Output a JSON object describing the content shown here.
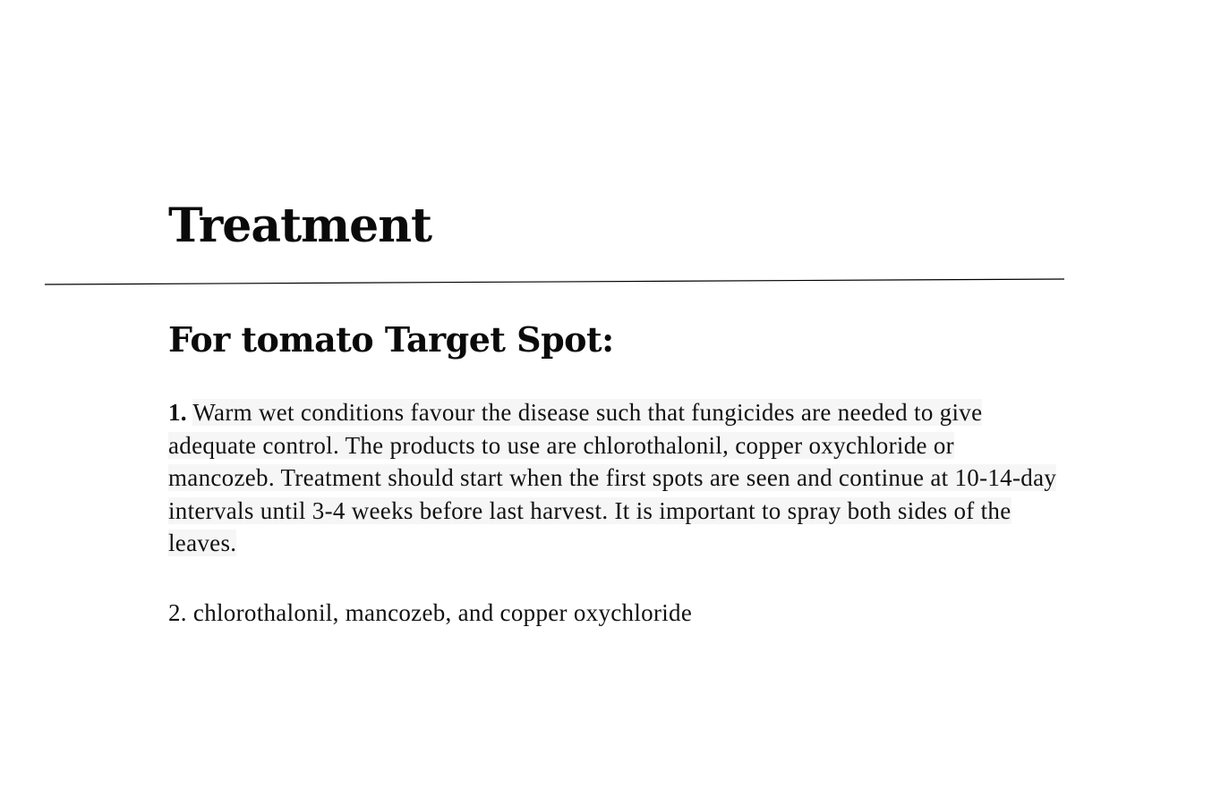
{
  "document": {
    "title": "Treatment",
    "section_heading": "For tomato Target Spot:",
    "items": [
      {
        "number": "1.",
        "text": "Warm wet conditions favour the disease such that fungicides are needed to give adequate control. The products to use are chlorothalonil, copper oxychloride or mancozeb. Treatment should start when the first spots are seen and continue at 10-14-day intervals until 3-4 weeks before last harvest. It is important to spray both sides of the leaves."
      },
      {
        "number": "2.",
        "text": "chlorothalonil, mancozeb, and copper oxychloride"
      }
    ]
  },
  "colors": {
    "text": "#111111",
    "highlight": "#f6f6f6",
    "rule": "#000000"
  }
}
